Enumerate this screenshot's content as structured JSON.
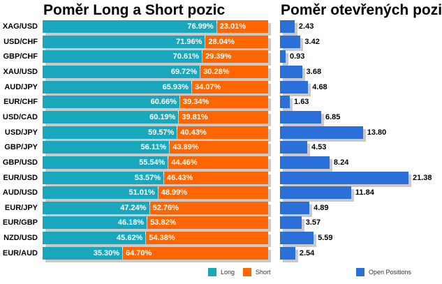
{
  "titles": {
    "left": "Poměr Long a Short pozic",
    "right": "Poměr otevřených pozic"
  },
  "legend": {
    "long": "Long",
    "short": "Short",
    "open": "Open Positions"
  },
  "colors": {
    "long": "#19a7bd",
    "short": "#ff6600",
    "open": "#2b6fd8",
    "shadow": "#c9c9c9"
  },
  "chart_data": [
    {
      "type": "bar",
      "stacked": true,
      "orientation": "horizontal",
      "title": "Poměr Long a Short pozic",
      "categories": [
        "XAG/USD",
        "USD/CHF",
        "GBP/CHF",
        "XAU/USD",
        "AUD/JPY",
        "EUR/CHF",
        "USD/CAD",
        "USD/JPY",
        "GBP/JPY",
        "GBP/USD",
        "EUR/USD",
        "AUD/USD",
        "EUR/JPY",
        "EUR/GBP",
        "NZD/USD",
        "EUR/AUD"
      ],
      "series": [
        {
          "name": "Long",
          "values": [
            76.99,
            71.96,
            70.61,
            69.72,
            65.93,
            60.66,
            60.19,
            59.57,
            56.11,
            55.54,
            53.57,
            51.01,
            47.24,
            46.18,
            45.62,
            35.3
          ],
          "labels": [
            "76.99%",
            "71.96%",
            "70.61%",
            "69.72%",
            "65.93%",
            "60.66%",
            "60.19%",
            "59.57%",
            "56.11%",
            "55.54%",
            "53.57%",
            "51.01%",
            "47.24%",
            "46.18%",
            "45.62%",
            "35.30%"
          ]
        },
        {
          "name": "Short",
          "values": [
            23.01,
            28.04,
            29.39,
            30.28,
            34.07,
            39.34,
            39.81,
            40.43,
            43.89,
            44.46,
            46.43,
            48.99,
            52.76,
            53.82,
            54.38,
            64.7
          ],
          "labels": [
            "23.01%",
            "28.04%",
            "29.39%",
            "30.28%",
            "34.07%",
            "39.34%",
            "39.81%",
            "40.43%",
            "43.89%",
            "44.46%",
            "46.43%",
            "48.99%",
            "52.76%",
            "53.82%",
            "54.38%",
            "64.70%"
          ]
        }
      ],
      "xlim": [
        0,
        100
      ]
    },
    {
      "type": "bar",
      "orientation": "horizontal",
      "title": "Poměr otevřených pozic",
      "categories": [
        "XAG/USD",
        "USD/CHF",
        "GBP/CHF",
        "XAU/USD",
        "AUD/JPY",
        "EUR/CHF",
        "USD/CAD",
        "USD/JPY",
        "GBP/JPY",
        "GBP/USD",
        "EUR/USD",
        "AUD/USD",
        "EUR/JPY",
        "EUR/GBP",
        "NZD/USD",
        "EUR/AUD"
      ],
      "series": [
        {
          "name": "Open Positions",
          "values": [
            2.43,
            3.42,
            0.93,
            3.68,
            4.68,
            1.63,
            6.85,
            13.8,
            4.53,
            8.24,
            21.38,
            11.84,
            4.89,
            3.57,
            5.59,
            2.54
          ],
          "labels": [
            "2.43",
            "3.42",
            "0.93",
            "3.68",
            "4.68",
            "1.63",
            "6.85",
            "13.80",
            "4.53",
            "8.24",
            "21.38",
            "11.84",
            "4.89",
            "3.57",
            "5.59",
            "2.54"
          ]
        }
      ],
      "xlim": [
        0,
        21.38
      ]
    }
  ]
}
